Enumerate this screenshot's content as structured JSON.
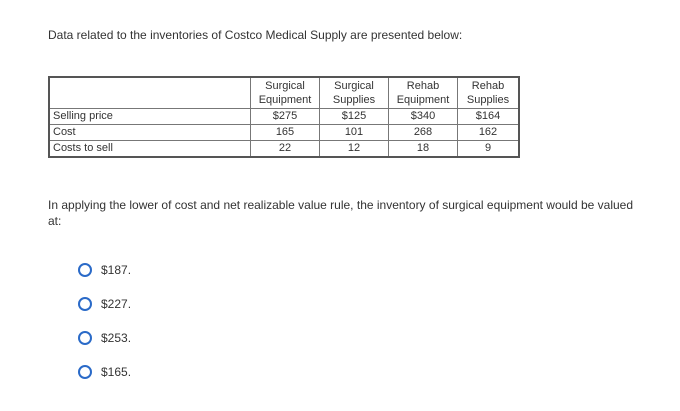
{
  "intro_text": "Data related to the inventories of Costco Medical Supply are presented below:",
  "table": {
    "headers": [
      {
        "line1": "Surgical",
        "line2": "Equipment"
      },
      {
        "line1": "Surgical",
        "line2": "Supplies"
      },
      {
        "line1": "Rehab",
        "line2": "Equipment"
      },
      {
        "line1": "Rehab",
        "line2": "Supplies"
      }
    ],
    "rows": [
      {
        "label": "Selling price",
        "values": [
          "$275",
          "$125",
          "$340",
          "$164"
        ]
      },
      {
        "label": "Cost",
        "values": [
          "165",
          "101",
          "268",
          "162"
        ]
      },
      {
        "label": "Costs to sell",
        "values": [
          "22",
          "12",
          "18",
          "9"
        ]
      }
    ]
  },
  "question_text": "In applying the lower of cost and net realizable value rule, the inventory of surgical equipment would be valued at:",
  "options": [
    "$187.",
    "$227.",
    "$253.",
    "$165."
  ]
}
